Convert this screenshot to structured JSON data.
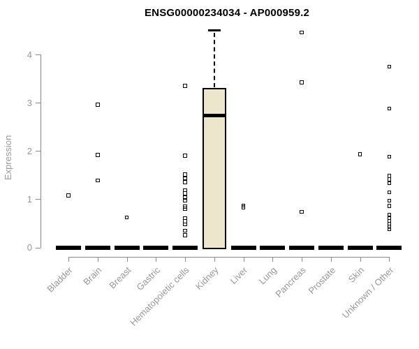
{
  "chart_data": {
    "type": "boxplot",
    "title": "ENSG00000234034 - AP000959.2",
    "ylabel": "Expression",
    "xlabel": "",
    "ylim": [
      0,
      4.6
    ],
    "yticks": [
      0,
      1,
      2,
      3,
      4
    ],
    "grid": false,
    "legend_position": "none",
    "categories": [
      "Bladder",
      "Brain",
      "Breast",
      "Gastric",
      "Hematopoietic cells",
      "Kidney",
      "Liver",
      "Lung",
      "Pancreas",
      "Prostate",
      "Skin",
      "Unknown / Other"
    ],
    "series": [
      {
        "category": "Bladder",
        "q1": 0,
        "median": 0,
        "q3": 0,
        "whisker_low": 0,
        "whisker_high": 0,
        "outliers": [
          1.08
        ]
      },
      {
        "category": "Brain",
        "q1": 0,
        "median": 0,
        "q3": 0,
        "whisker_low": 0,
        "whisker_high": 0,
        "outliers": [
          2.96,
          1.92,
          1.39
        ]
      },
      {
        "category": "Breast",
        "q1": 0,
        "median": 0,
        "q3": 0,
        "whisker_low": 0,
        "whisker_high": 0,
        "outliers": [
          0.62
        ]
      },
      {
        "category": "Gastric",
        "q1": 0,
        "median": 0,
        "q3": 0,
        "whisker_low": 0,
        "whisker_high": 0,
        "outliers": []
      },
      {
        "category": "Hematopoietic cells",
        "q1": 0,
        "median": 0,
        "q3": 0,
        "whisker_low": 0,
        "whisker_high": 0,
        "outliers": [
          3.35,
          1.9,
          1.51,
          1.43,
          1.35,
          1.19,
          1.12,
          1.04,
          0.97,
          0.85,
          0.8,
          0.61,
          0.54,
          0.48,
          0.35,
          0.25
        ]
      },
      {
        "category": "Kidney",
        "q1": 0,
        "median": 2.74,
        "q3": 3.3,
        "whisker_low": 0,
        "whisker_high": 4.5,
        "outliers": []
      },
      {
        "category": "Liver",
        "q1": 0,
        "median": 0,
        "q3": 0,
        "whisker_low": 0,
        "whisker_high": 0,
        "outliers": [
          0.87,
          0.83
        ]
      },
      {
        "category": "Lung",
        "q1": 0,
        "median": 0,
        "q3": 0,
        "whisker_low": 0,
        "whisker_high": 0,
        "outliers": []
      },
      {
        "category": "Pancreas",
        "q1": 0,
        "median": 0,
        "q3": 0,
        "whisker_low": 0,
        "whisker_high": 0,
        "outliers": [
          4.46,
          3.42,
          0.74
        ]
      },
      {
        "category": "Prostate",
        "q1": 0,
        "median": 0,
        "q3": 0,
        "whisker_low": 0,
        "whisker_high": 0,
        "outliers": []
      },
      {
        "category": "Skin",
        "q1": 0,
        "median": 0,
        "q3": 0,
        "whisker_low": 0,
        "whisker_high": 0,
        "outliers": [
          1.93
        ]
      },
      {
        "category": "Unknown / Other",
        "q1": 0,
        "median": 0,
        "q3": 0,
        "whisker_low": 0,
        "whisker_high": 0,
        "outliers": [
          3.75,
          2.88,
          1.88,
          1.48,
          1.41,
          1.33,
          1.14,
          0.97,
          0.86,
          0.68,
          0.61,
          0.55,
          0.49,
          0.43,
          0.38
        ]
      }
    ],
    "colors": {
      "box_fill": "#ECE7CC",
      "box_border": "#000000",
      "median": "#000000",
      "outlier": "#000000",
      "axis": "#888888",
      "tick_label": "#979797",
      "title": "#000000"
    }
  }
}
